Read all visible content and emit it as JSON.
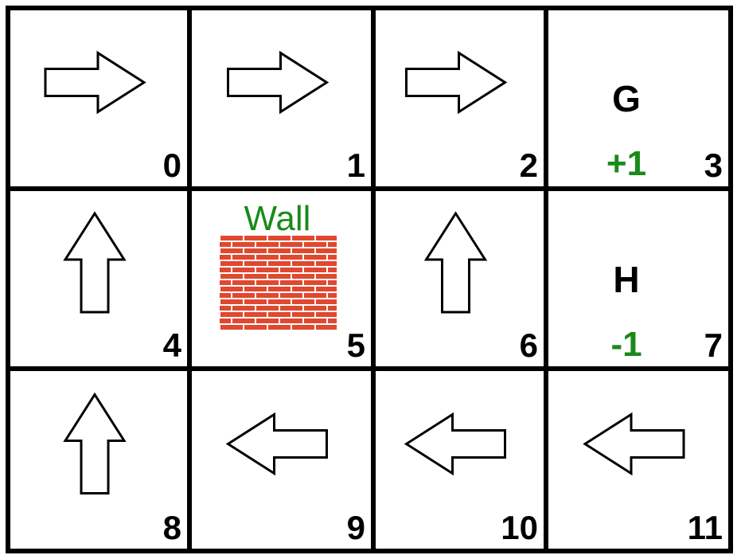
{
  "colors": {
    "reward_text": "#1a8a1a",
    "wall_text": "#1a8a1a",
    "brick": "#e0482f",
    "mortar": "#ffffff"
  },
  "cells": [
    {
      "id": "0",
      "type": "policy",
      "action": "right"
    },
    {
      "id": "1",
      "type": "policy",
      "action": "right"
    },
    {
      "id": "2",
      "type": "policy",
      "action": "right"
    },
    {
      "id": "3",
      "type": "terminal",
      "letter": "G",
      "reward": "+1"
    },
    {
      "id": "4",
      "type": "policy",
      "action": "up"
    },
    {
      "id": "5",
      "type": "wall",
      "label": "Wall"
    },
    {
      "id": "6",
      "type": "policy",
      "action": "up"
    },
    {
      "id": "7",
      "type": "terminal",
      "letter": "H",
      "reward": "-1"
    },
    {
      "id": "8",
      "type": "policy",
      "action": "up"
    },
    {
      "id": "9",
      "type": "policy",
      "action": "left"
    },
    {
      "id": "10",
      "type": "policy",
      "action": "left"
    },
    {
      "id": "11",
      "type": "policy",
      "action": "left"
    }
  ]
}
